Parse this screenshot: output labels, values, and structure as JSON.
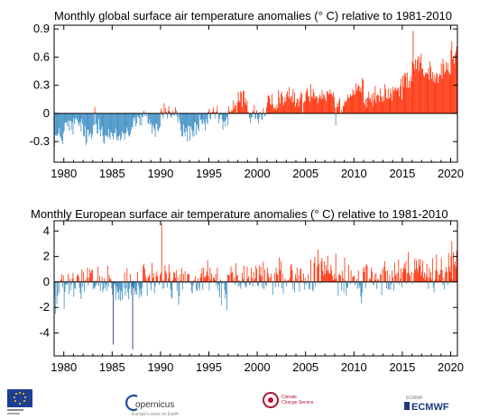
{
  "chart_data": [
    {
      "type": "bar",
      "title": "Monthly  global surface air temperature anomalies (° C) relative to 1981-2010",
      "xlabel": "",
      "ylabel": "",
      "x_ticks": [
        1980,
        1985,
        1990,
        1995,
        2000,
        2005,
        2010,
        2015,
        2020
      ],
      "x_tick_labels": [
        "1980",
        "1985",
        "1990",
        "1995",
        "2000",
        "2005",
        "2010",
        "2015",
        "2020"
      ],
      "y_ticks": [
        -0.3,
        0,
        0.3,
        0.6,
        0.9
      ],
      "y_tick_labels": [
        "-0.3",
        "0",
        "0.3",
        "0.6",
        "0.9"
      ],
      "xlim": [
        1979.0,
        2020.7
      ],
      "ylim": [
        -0.52,
        0.94
      ],
      "grid": false,
      "colors": {
        "positive": "#ff2a00",
        "negative_light": "#3a8cc4",
        "negative_dark": "#0d2a6b"
      },
      "series": [
        {
          "values_by_year_mean": [
            [
              1979,
              -0.25
            ],
            [
              1980,
              -0.14
            ],
            [
              1981,
              -0.12
            ],
            [
              1982,
              -0.25
            ],
            [
              1983,
              -0.12
            ],
            [
              1984,
              -0.24
            ],
            [
              1985,
              -0.26
            ],
            [
              1986,
              -0.2
            ],
            [
              1987,
              -0.08
            ],
            [
              1988,
              -0.06
            ],
            [
              1989,
              -0.16
            ],
            [
              1990,
              0.02
            ],
            [
              1991,
              -0.02
            ],
            [
              1992,
              -0.2
            ],
            [
              1993,
              -0.19
            ],
            [
              1994,
              -0.12
            ],
            [
              1995,
              0.0
            ],
            [
              1996,
              -0.08
            ],
            [
              1997,
              0.04
            ],
            [
              1998,
              0.17
            ],
            [
              1999,
              -0.01
            ],
            [
              2000,
              -0.03
            ],
            [
              2001,
              0.1
            ],
            [
              2002,
              0.18
            ],
            [
              2003,
              0.17
            ],
            [
              2004,
              0.13
            ],
            [
              2005,
              0.24
            ],
            [
              2006,
              0.2
            ],
            [
              2007,
              0.22
            ],
            [
              2008,
              0.08
            ],
            [
              2009,
              0.2
            ],
            [
              2010,
              0.28
            ],
            [
              2011,
              0.14
            ],
            [
              2012,
              0.18
            ],
            [
              2013,
              0.21
            ],
            [
              2014,
              0.24
            ],
            [
              2015,
              0.38
            ],
            [
              2016,
              0.55
            ],
            [
              2017,
              0.45
            ],
            [
              2018,
              0.38
            ],
            [
              2019,
              0.48
            ],
            [
              2020,
              0.6
            ]
          ],
          "monthly_spread": 0.11,
          "notable_months": [
            [
              2016.1,
              0.88
            ],
            [
              2020.1,
              0.77
            ],
            [
              1983.2,
              0.07
            ],
            [
              2008.1,
              -0.13
            ]
          ]
        }
      ]
    },
    {
      "type": "bar",
      "title": "Monthly  European surface air temperature anomalies (° C) relative to 1981-2010",
      "xlabel": "",
      "ylabel": "",
      "x_ticks": [
        1980,
        1985,
        1990,
        1995,
        2000,
        2005,
        2010,
        2015,
        2020
      ],
      "x_tick_labels": [
        "1980",
        "1985",
        "1990",
        "1995",
        "2000",
        "2005",
        "2010",
        "2015",
        "2020"
      ],
      "y_ticks": [
        -4,
        -2,
        0,
        2,
        4
      ],
      "y_tick_labels": [
        "-4",
        "-2",
        "0",
        "2",
        "4"
      ],
      "xlim": [
        1979.0,
        2020.7
      ],
      "ylim": [
        -5.8,
        4.8
      ],
      "grid": false,
      "colors": {
        "positive": "#ff2a00",
        "negative_light": "#3a8cc4",
        "negative_dark": "#0d2a6b"
      },
      "series": [
        {
          "values_by_year_mean": [
            [
              1979,
              -0.6
            ],
            [
              1980,
              -0.5
            ],
            [
              1981,
              -0.3
            ],
            [
              1982,
              0.0
            ],
            [
              1983,
              0.0
            ],
            [
              1984,
              -0.3
            ],
            [
              1985,
              -0.9
            ],
            [
              1986,
              -0.6
            ],
            [
              1987,
              -0.7
            ],
            [
              1988,
              0.1
            ],
            [
              1989,
              0.3
            ],
            [
              1990,
              0.5
            ],
            [
              1991,
              -0.2
            ],
            [
              1992,
              0.2
            ],
            [
              1993,
              -0.2
            ],
            [
              1994,
              0.3
            ],
            [
              1995,
              0.1
            ],
            [
              1996,
              -0.5
            ],
            [
              1997,
              0.1
            ],
            [
              1998,
              0.1
            ],
            [
              1999,
              0.4
            ],
            [
              2000,
              0.5
            ],
            [
              2001,
              0.2
            ],
            [
              2002,
              0.5
            ],
            [
              2003,
              0.4
            ],
            [
              2004,
              0.3
            ],
            [
              2005,
              0.2
            ],
            [
              2006,
              0.8
            ],
            [
              2007,
              0.8
            ],
            [
              2008,
              0.5
            ],
            [
              2009,
              0.3
            ],
            [
              2010,
              -0.4
            ],
            [
              2011,
              0.6
            ],
            [
              2012,
              0.3
            ],
            [
              2013,
              0.2
            ],
            [
              2014,
              1.0
            ],
            [
              2015,
              0.8
            ],
            [
              2016,
              0.6
            ],
            [
              2017,
              0.5
            ],
            [
              2018,
              0.9
            ],
            [
              2019,
              0.8
            ],
            [
              2020,
              1.3
            ]
          ],
          "monthly_spread": 1.4,
          "notable_months": [
            [
              1990.1,
              4.6
            ],
            [
              1985.1,
              -4.9
            ],
            [
              1987.1,
              -5.3
            ],
            [
              2020.1,
              3.2
            ],
            [
              1979.1,
              -2.5
            ],
            [
              1983.5,
              1.2
            ]
          ]
        }
      ]
    }
  ],
  "footer": {
    "logos": [
      "eu-flag-logo",
      "copernicus-logo",
      "climate-change-service-logo",
      "ecmwf-logo"
    ],
    "copernicus_label": "opernicus",
    "copernicus_sub": "Europe's eyes on Earth",
    "c3s_line1": "Climate",
    "c3s_line2": "Change Service",
    "ecmwf_label": "ECMWF",
    "ecmwf_sub": "ECMWF"
  }
}
